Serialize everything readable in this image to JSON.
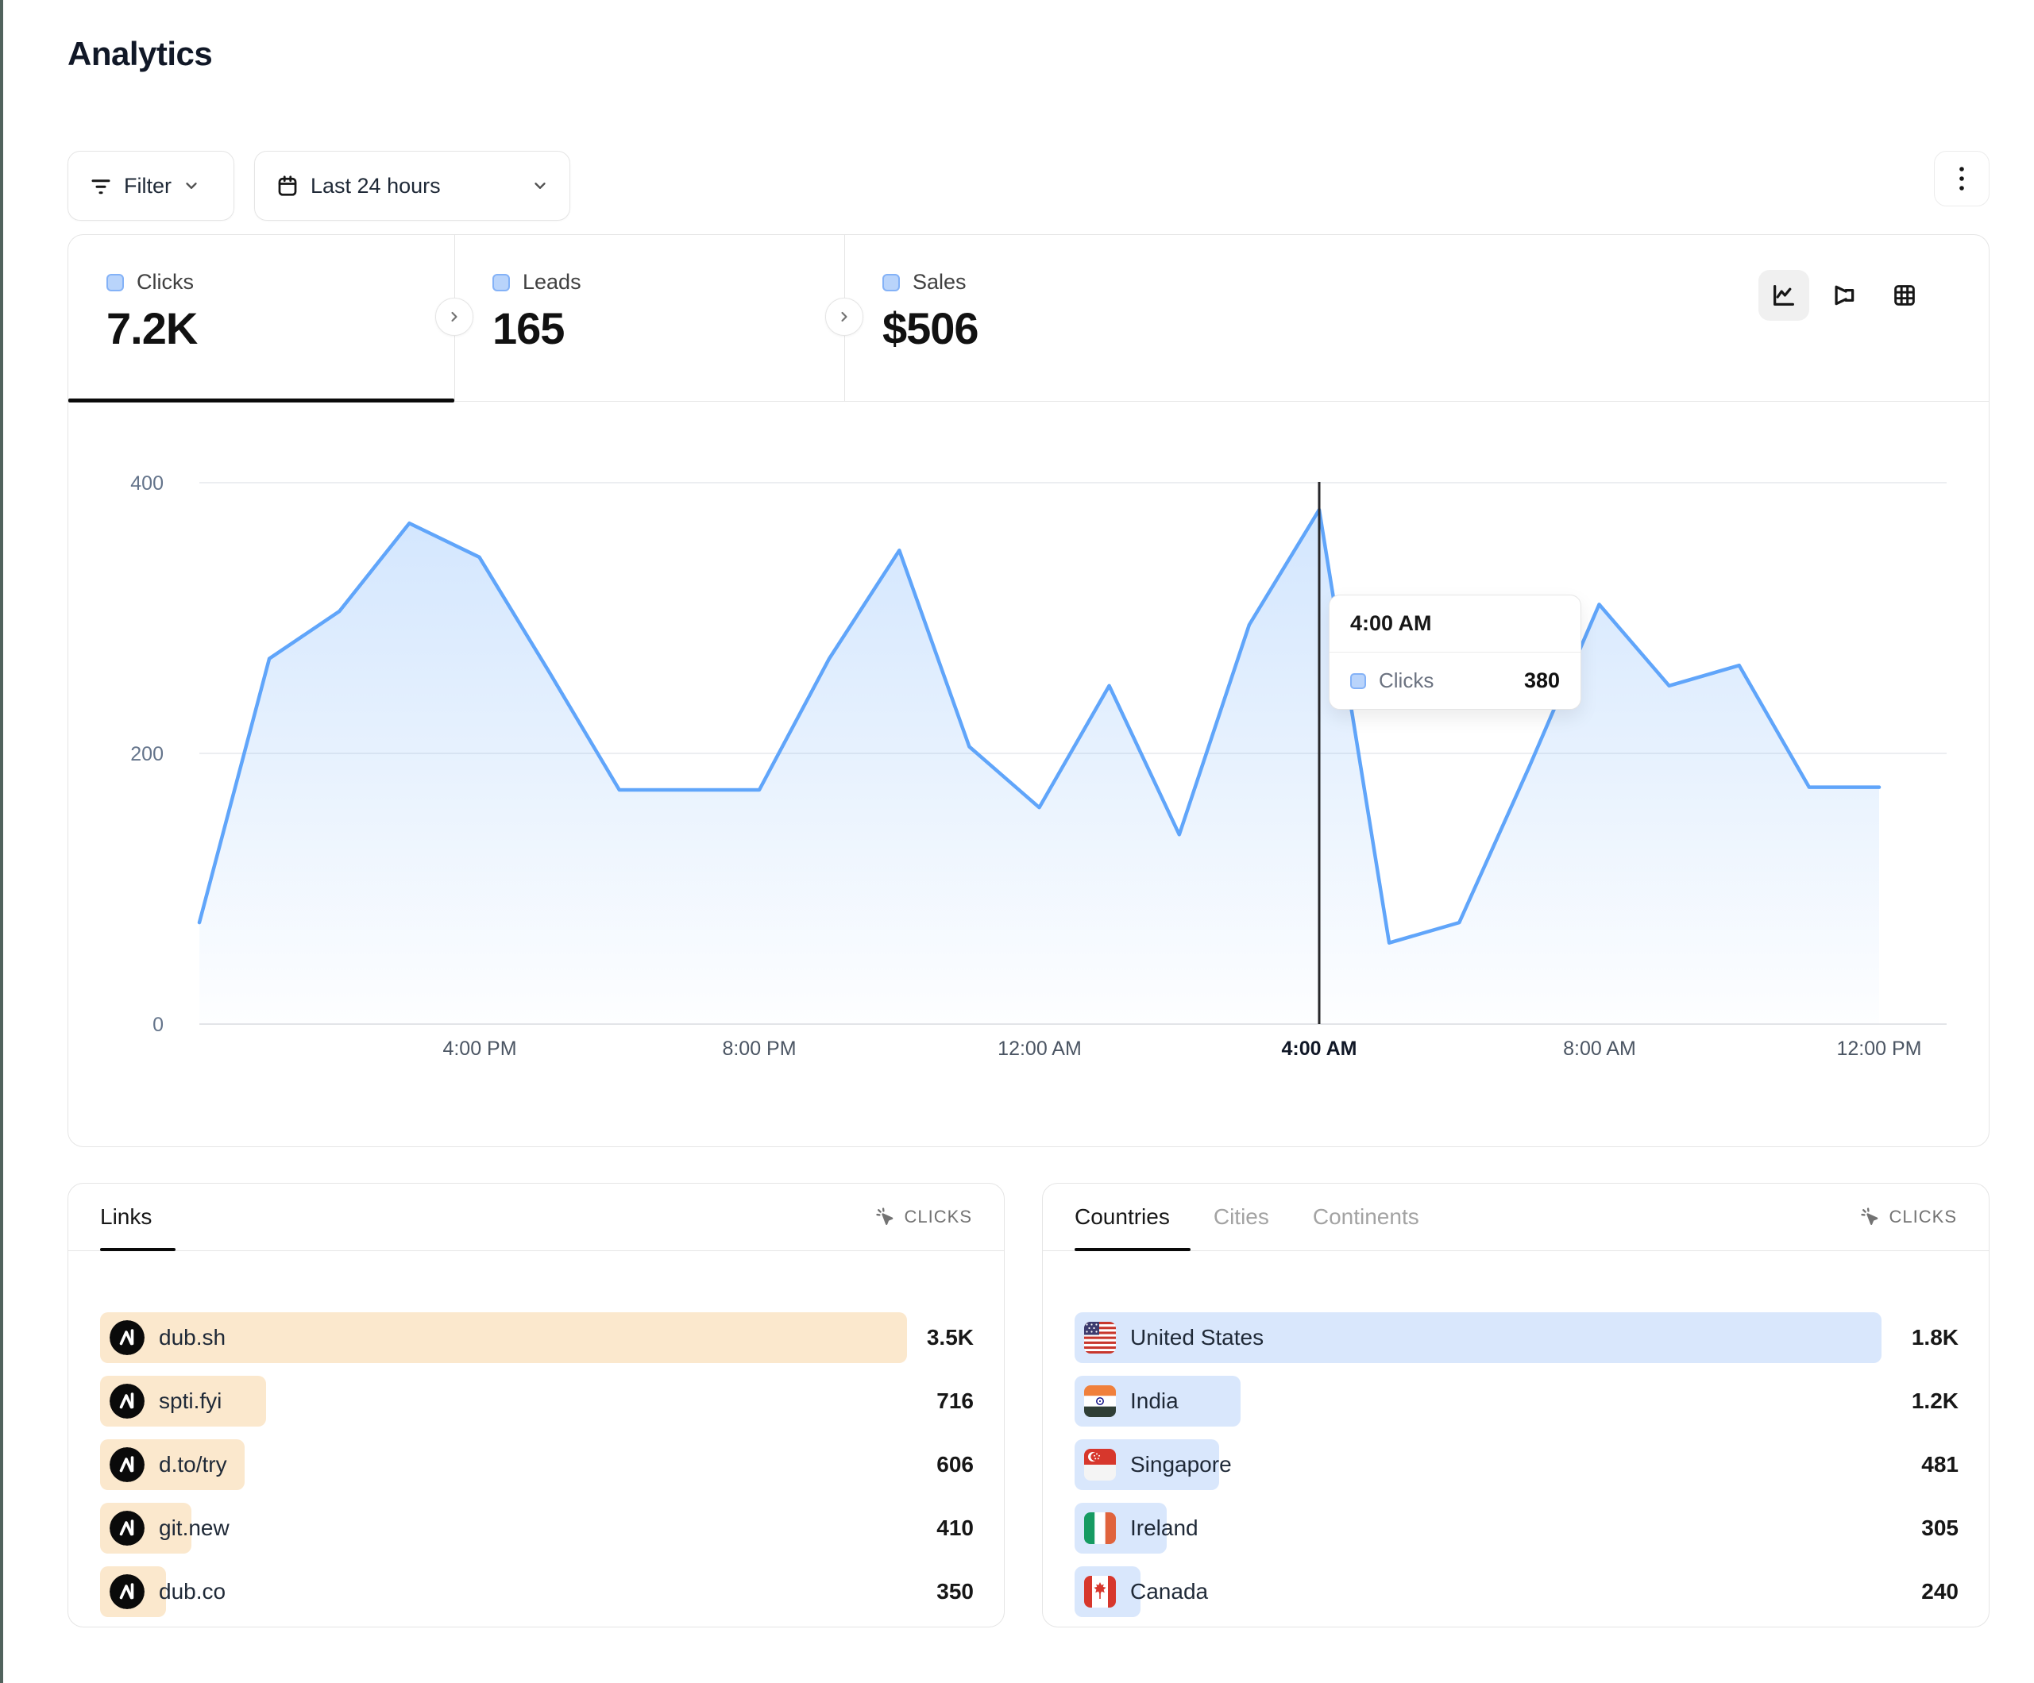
{
  "page": {
    "title": "Analytics"
  },
  "toolbar": {
    "filter_label": "Filter",
    "date_range_label": "Last 24 hours"
  },
  "stats": {
    "tabs": [
      {
        "label": "Clicks",
        "value": "7.2K"
      },
      {
        "label": "Leads",
        "value": "165"
      },
      {
        "label": "Sales",
        "value": "$506"
      }
    ],
    "active_tab": "Clicks"
  },
  "chart_data": {
    "type": "area",
    "series_name": "Clicks",
    "x": [
      "12:00 PM",
      "1:00 PM",
      "2:00 PM",
      "3:00 PM",
      "4:00 PM",
      "5:00 PM",
      "6:00 PM",
      "7:00 PM",
      "8:00 PM",
      "9:00 PM",
      "10:00 PM",
      "11:00 PM",
      "12:00 AM",
      "1:00 AM",
      "2:00 AM",
      "3:00 AM",
      "4:00 AM",
      "5:00 AM",
      "6:00 AM",
      "7:00 AM",
      "8:00 AM",
      "9:00 AM",
      "10:00 AM",
      "11:00 AM",
      "12:00 PM"
    ],
    "values": [
      75,
      270,
      305,
      370,
      345,
      260,
      173,
      173,
      173,
      270,
      350,
      205,
      160,
      250,
      140,
      295,
      380,
      60,
      75,
      190,
      310,
      250,
      265,
      175,
      175
    ],
    "ylim": [
      0,
      400
    ],
    "y_ticks": [
      "400",
      "200",
      "0"
    ],
    "x_tick_labels": [
      "4:00 PM",
      "8:00 PM",
      "12:00 AM",
      "4:00 AM",
      "8:00 AM",
      "12:00 PM"
    ],
    "highlighted_tick": "4:00 AM",
    "highlight_index": 16,
    "line_color": "#60a5fa",
    "grid": true,
    "legend_position": "none"
  },
  "tooltip": {
    "time": "4:00 AM",
    "series": "Clicks",
    "value": "380"
  },
  "links_panel": {
    "tab": "Links",
    "metric_label": "CLICKS",
    "rows": [
      {
        "label": "dub.sh",
        "value": "3.5K",
        "pct": 100
      },
      {
        "label": "spti.fyi",
        "value": "716",
        "pct": 20.6
      },
      {
        "label": "d.to/try",
        "value": "606",
        "pct": 17.9
      },
      {
        "label": "git.new",
        "value": "410",
        "pct": 11.3
      },
      {
        "label": "dub.co",
        "value": "350",
        "pct": 8.2
      }
    ]
  },
  "countries_panel": {
    "tabs": [
      "Countries",
      "Cities",
      "Continents"
    ],
    "active_tab": "Countries",
    "metric_label": "CLICKS",
    "rows": [
      {
        "label": "United States",
        "value": "1.8K",
        "pct": 100,
        "flag": "us"
      },
      {
        "label": "India",
        "value": "1.2K",
        "pct": 20.6,
        "flag": "in"
      },
      {
        "label": "Singapore",
        "value": "481",
        "pct": 17.9,
        "flag": "sg"
      },
      {
        "label": "Ireland",
        "value": "305",
        "pct": 11.4,
        "flag": "ie"
      },
      {
        "label": "Canada",
        "value": "240",
        "pct": 8.2,
        "flag": "ca"
      }
    ]
  },
  "colors": {
    "accent_line": "#60a5fa",
    "links_bar": "#fbe8cd",
    "countries_bar": "#d9e7fc",
    "border": "#e5e5e5",
    "left_stripe": "#51635d"
  }
}
